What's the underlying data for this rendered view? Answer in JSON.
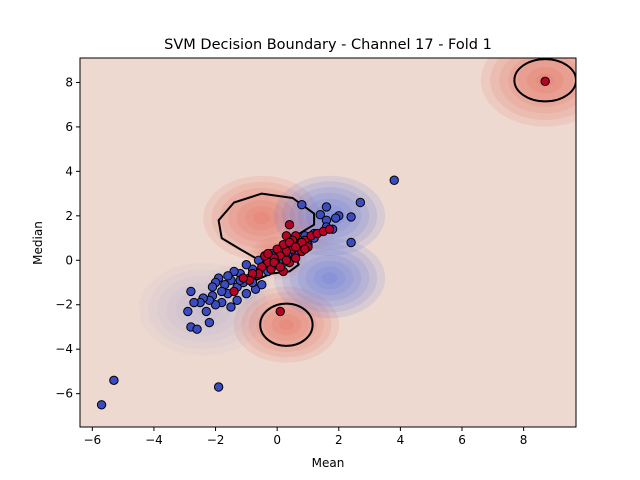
{
  "chart_data": {
    "type": "scatter",
    "title": "SVM Decision Boundary - Channel 17 - Fold 1",
    "xlabel": "Mean",
    "ylabel": "Median",
    "xlim": [
      -6.4,
      9.7
    ],
    "ylim": [
      -7.5,
      9.1
    ],
    "xticks": [
      -6,
      -4,
      -2,
      0,
      2,
      4,
      6,
      8
    ],
    "yticks": [
      -6,
      -4,
      -2,
      0,
      2,
      4,
      6,
      8
    ],
    "grid": false,
    "background_color": "#eed9d0",
    "colors": {
      "class_0": "#3b4cc0",
      "class_1": "#b40426",
      "positive_region": "#e0533f",
      "negative_region": "#4a6fe3",
      "boundary": "#000000",
      "marker_edge": "#000000"
    },
    "decision_function_peaks": [
      {
        "x": 8.7,
        "y": 8.1,
        "value": 1.0,
        "spread": 1.1
      },
      {
        "x": -0.5,
        "y": 1.9,
        "value": 1.1,
        "spread": 1.0
      },
      {
        "x": 0.3,
        "y": -2.9,
        "value": 1.0,
        "spread": 0.9
      },
      {
        "x": 0.0,
        "y": 0.1,
        "value": 0.8,
        "spread": 0.5
      },
      {
        "x": 1.0,
        "y": 1.0,
        "value": 0.45,
        "spread": 0.45
      },
      {
        "x": 1.7,
        "y": 2.0,
        "value": -1.3,
        "spread": 0.95
      },
      {
        "x": 1.7,
        "y": -0.8,
        "value": -1.3,
        "spread": 0.95
      },
      {
        "x": -2.4,
        "y": -2.2,
        "value": -0.35,
        "spread": 1.1
      },
      {
        "x": -1.2,
        "y": -1.2,
        "value": -0.2,
        "spread": 0.6
      }
    ],
    "decision_boundaries": [
      {
        "cx": 8.7,
        "cy": 8.1,
        "rx": 1.0,
        "ry": 0.95
      },
      {
        "cx": 0.3,
        "cy": -2.9,
        "rx": 0.85,
        "ry": 0.95
      }
    ],
    "decision_boundary_paths": [
      [
        [
          -1.8,
          1.0
        ],
        [
          -1.9,
          1.8
        ],
        [
          -1.4,
          2.6
        ],
        [
          -0.5,
          3.0
        ],
        [
          0.5,
          2.8
        ],
        [
          1.2,
          2.1
        ],
        [
          1.2,
          1.6
        ],
        [
          0.6,
          1.1
        ],
        [
          0.3,
          0.6
        ],
        [
          0.2,
          0.1
        ],
        [
          -0.2,
          -0.2
        ],
        [
          -0.7,
          0.1
        ],
        [
          -1.2,
          0.5
        ],
        [
          -1.8,
          1.0
        ]
      ],
      [
        [
          -0.7,
          -0.9
        ],
        [
          -0.2,
          -0.6
        ],
        [
          0.4,
          -0.5
        ],
        [
          0.7,
          -0.2
        ],
        [
          0.6,
          0.1
        ],
        [
          0.2,
          0.2
        ],
        [
          -0.4,
          -0.1
        ],
        [
          -0.7,
          -0.5
        ],
        [
          -0.7,
          -0.9
        ]
      ]
    ],
    "series": [
      {
        "name": "",
        "class": 0,
        "points": [
          [
            -5.7,
            -6.5
          ],
          [
            -5.3,
            -5.4
          ],
          [
            -1.9,
            -5.7
          ],
          [
            3.8,
            3.6
          ],
          [
            2.7,
            2.6
          ],
          [
            1.6,
            2.4
          ],
          [
            0.8,
            2.5
          ],
          [
            2.0,
            2.0
          ],
          [
            2.4,
            1.95
          ],
          [
            1.4,
            2.05
          ],
          [
            1.9,
            1.9
          ],
          [
            1.6,
            1.8
          ],
          [
            2.4,
            0.8
          ],
          [
            1.8,
            1.4
          ],
          [
            1.6,
            1.5
          ],
          [
            1.2,
            1.2
          ],
          [
            0.9,
            1.1
          ],
          [
            0.7,
            0.9
          ],
          [
            0.5,
            0.6
          ],
          [
            0.4,
            0.3
          ],
          [
            0.3,
            0.1
          ],
          [
            0.1,
            0.1
          ],
          [
            -0.2,
            0.3
          ],
          [
            -0.6,
            0.0
          ],
          [
            -0.8,
            -0.4
          ],
          [
            -1.0,
            -0.2
          ],
          [
            -1.2,
            -0.6
          ],
          [
            -1.4,
            -0.5
          ],
          [
            -1.5,
            -0.9
          ],
          [
            -1.7,
            -1.1
          ],
          [
            -1.3,
            -1.2
          ],
          [
            -1.1,
            -1.0
          ],
          [
            -0.9,
            -0.8
          ],
          [
            -0.7,
            -1.3
          ],
          [
            -1.6,
            -1.5
          ],
          [
            -1.9,
            -0.8
          ],
          [
            -2.0,
            -1.0
          ],
          [
            -1.8,
            -1.4
          ],
          [
            -2.1,
            -1.6
          ],
          [
            -1.8,
            -1.9
          ],
          [
            -1.3,
            -1.8
          ],
          [
            -1.5,
            -2.1
          ],
          [
            -2.0,
            -2.0
          ],
          [
            -2.2,
            -1.8
          ],
          [
            -2.4,
            -1.7
          ],
          [
            -2.5,
            -1.9
          ],
          [
            -2.3,
            -2.3
          ],
          [
            -2.7,
            -1.9
          ],
          [
            -2.8,
            -1.4
          ],
          [
            -2.9,
            -2.3
          ],
          [
            -2.8,
            -3.0
          ],
          [
            -2.6,
            -3.1
          ],
          [
            -2.2,
            -2.8
          ],
          [
            -2.1,
            -1.2
          ],
          [
            -1.6,
            -0.7
          ],
          [
            -1.0,
            -1.5
          ],
          [
            -0.5,
            -1.1
          ],
          [
            -0.3,
            -0.5
          ],
          [
            0.0,
            -0.2
          ],
          [
            -0.1,
            0.2
          ],
          [
            -0.4,
            0.2
          ],
          [
            0.2,
            -0.1
          ],
          [
            0.6,
            0.3
          ],
          [
            1.0,
            0.7
          ],
          [
            1.2,
            1.0
          ],
          [
            -0.8,
            -1.0
          ],
          [
            -1.2,
            -0.9
          ]
        ]
      },
      {
        "name": "",
        "class": 1,
        "points": [
          [
            8.7,
            8.05
          ],
          [
            0.1,
            -2.3
          ],
          [
            -1.4,
            -1.4
          ],
          [
            0.4,
            1.6
          ],
          [
            0.6,
            1.1
          ],
          [
            0.9,
            0.9
          ],
          [
            1.1,
            1.1
          ],
          [
            1.3,
            1.2
          ],
          [
            1.5,
            1.3
          ],
          [
            1.7,
            1.4
          ],
          [
            0.7,
            0.7
          ],
          [
            0.5,
            0.5
          ],
          [
            0.3,
            0.4
          ],
          [
            0.2,
            0.7
          ],
          [
            0.0,
            0.5
          ],
          [
            0.1,
            0.2
          ],
          [
            -0.1,
            0.1
          ],
          [
            -0.3,
            -0.1
          ],
          [
            -0.4,
            0.2
          ],
          [
            -0.2,
            -0.4
          ],
          [
            -0.5,
            -0.3
          ],
          [
            -0.6,
            -0.6
          ],
          [
            -0.8,
            -0.6
          ],
          [
            -0.9,
            -0.9
          ],
          [
            -1.1,
            -0.8
          ],
          [
            0.2,
            -0.5
          ],
          [
            0.4,
            -0.1
          ],
          [
            0.6,
            0.1
          ],
          [
            0.8,
            0.4
          ],
          [
            1.0,
            0.6
          ],
          [
            0.3,
            1.1
          ],
          [
            0.5,
            0.9
          ],
          [
            0.8,
            0.8
          ],
          [
            0.4,
            0.8
          ],
          [
            0.9,
            0.5
          ],
          [
            0.6,
            0.6
          ],
          [
            0.3,
            0.0
          ],
          [
            -0.1,
            -0.1
          ],
          [
            0.1,
            -0.3
          ],
          [
            -0.3,
            0.3
          ]
        ]
      }
    ]
  }
}
